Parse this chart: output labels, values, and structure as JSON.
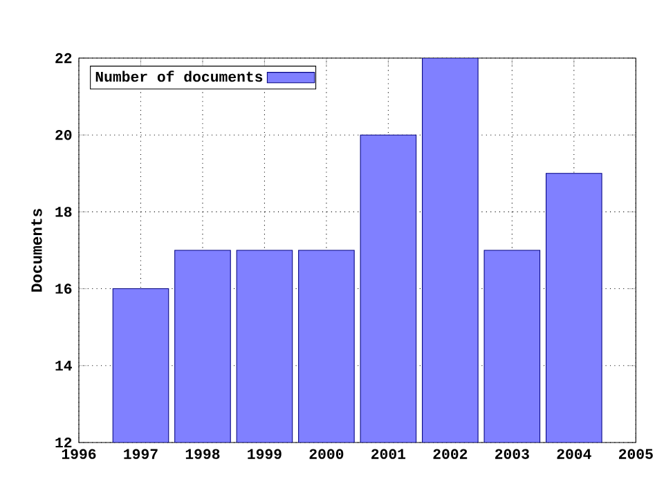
{
  "chart_data": {
    "type": "bar",
    "ylabel": "Documents",
    "x": [
      1997,
      1998,
      1999,
      2000,
      2001,
      2002,
      2003,
      2004
    ],
    "series": [
      {
        "name": "Number of documents",
        "color": "#8080ff",
        "values": [
          16,
          17,
          17,
          17,
          20,
          22,
          17,
          19
        ]
      }
    ],
    "xlim": [
      1996,
      2005
    ],
    "xticks": [
      1996,
      1997,
      1998,
      1999,
      2000,
      2001,
      2002,
      2003,
      2004,
      2005
    ],
    "ylim": [
      12,
      22
    ],
    "yticks": [
      12,
      14,
      16,
      18,
      20,
      22
    ],
    "grid": true,
    "legend": "top left"
  }
}
